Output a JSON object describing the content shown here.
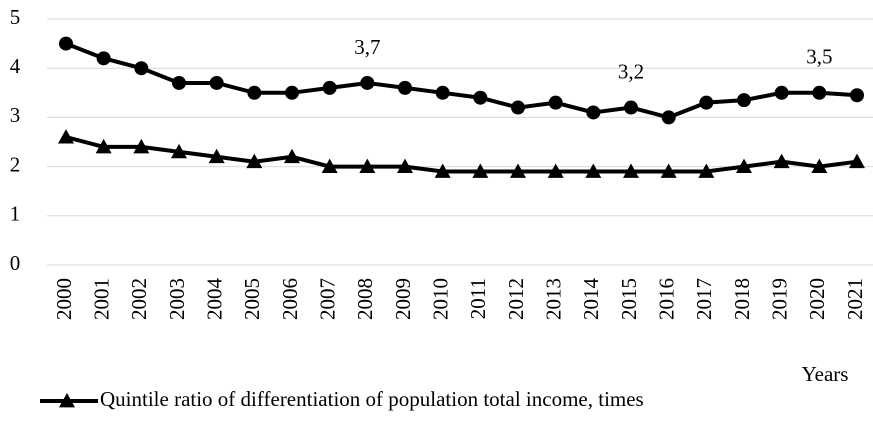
{
  "chart_data": {
    "type": "line",
    "categories": [
      "2000",
      "2001",
      "2002",
      "2003",
      "2004",
      "2005",
      "2006",
      "2007",
      "2008",
      "2009",
      "2010",
      "2011",
      "2012",
      "2013",
      "2014",
      "2015",
      "2016",
      "2017",
      "2018",
      "2019",
      "2020",
      "2021"
    ],
    "series": [
      {
        "color": "#000000",
        "marker": "circle",
        "values": [
          4.5,
          4.2,
          4.0,
          3.7,
          3.7,
          3.5,
          3.5,
          3.6,
          3.7,
          3.6,
          3.5,
          3.4,
          3.2,
          3.3,
          3.1,
          3.2,
          3.0,
          3.3,
          3.35,
          3.5,
          3.5,
          3.45
        ],
        "value_labels": [
          null,
          null,
          null,
          null,
          null,
          null,
          null,
          null,
          "3,7",
          null,
          null,
          null,
          null,
          null,
          null,
          "3,2",
          null,
          null,
          null,
          null,
          "3,5",
          null
        ]
      },
      {
        "name": "Quintile ratio of differentiation of population total income, times",
        "color": "#000000",
        "marker": "triangle",
        "values": [
          2.6,
          2.4,
          2.4,
          2.3,
          2.2,
          2.1,
          2.2,
          2.0,
          2.0,
          2.0,
          1.9,
          1.9,
          1.9,
          1.9,
          1.9,
          1.9,
          1.9,
          1.9,
          2.0,
          2.1,
          2.0,
          2.1
        ]
      }
    ],
    "xlabel": "Years",
    "ylim": [
      0,
      5
    ],
    "yticks": [
      0,
      1,
      2,
      3,
      4,
      5
    ],
    "grid": true
  }
}
